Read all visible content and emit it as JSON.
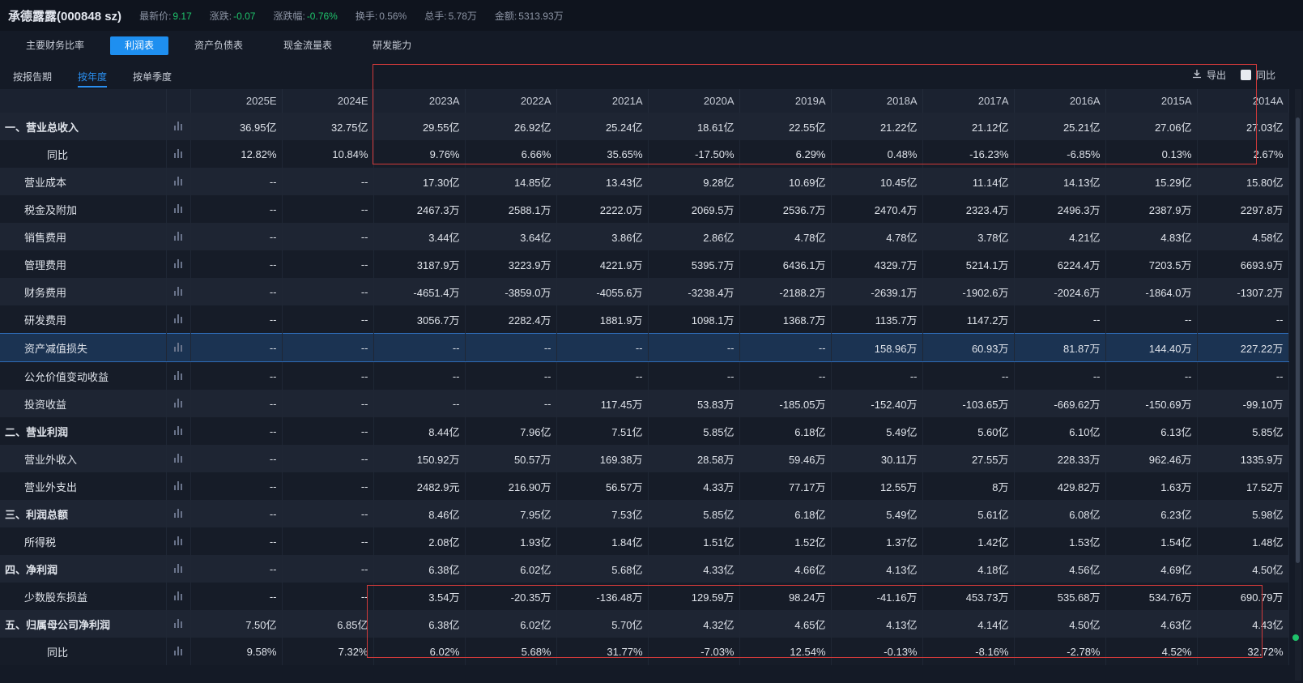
{
  "header": {
    "stock_name": "承德露露(000848 sz)",
    "latest_price_label": "最新价:",
    "latest_price": "9.17",
    "change_label": "涨跌:",
    "change": "-0.07",
    "change_pct_label": "涨跌幅:",
    "change_pct": "-0.76%",
    "turnover_label": "换手:",
    "turnover": "0.56%",
    "volume_label": "总手:",
    "volume": "5.78万",
    "amount_label": "金额:",
    "amount": "5313.93万"
  },
  "tabs": [
    "主要财务比率",
    "利润表",
    "资产负债表",
    "现金流量表",
    "研发能力"
  ],
  "active_tab": 1,
  "subtabs": [
    "按报告期",
    "按年度",
    "按单季度"
  ],
  "active_subtab": 1,
  "tools": {
    "export_label": "导出",
    "compare_label": "同比"
  },
  "table": {
    "columns": [
      "2025E",
      "2024E",
      "2023A",
      "2022A",
      "2021A",
      "2020A",
      "2019A",
      "2018A",
      "2017A",
      "2016A",
      "2015A",
      "2014A"
    ],
    "rows": [
      {
        "name": "一、营业总收入",
        "values": [
          "36.95亿",
          "32.75亿",
          "29.55亿",
          "26.92亿",
          "25.24亿",
          "18.61亿",
          "22.55亿",
          "21.22亿",
          "21.12亿",
          "25.21亿",
          "27.06亿",
          "27.03亿"
        ]
      },
      {
        "name": "同比",
        "values": [
          "12.82%",
          "10.84%",
          "9.76%",
          "6.66%",
          "35.65%",
          "-17.50%",
          "6.29%",
          "0.48%",
          "-16.23%",
          "-6.85%",
          "0.13%",
          "2.67%"
        ]
      },
      {
        "name": "营业成本",
        "values": [
          "--",
          "--",
          "17.30亿",
          "14.85亿",
          "13.43亿",
          "9.28亿",
          "10.69亿",
          "10.45亿",
          "11.14亿",
          "14.13亿",
          "15.29亿",
          "15.80亿"
        ]
      },
      {
        "name": "税金及附加",
        "values": [
          "--",
          "--",
          "2467.3万",
          "2588.1万",
          "2222.0万",
          "2069.5万",
          "2536.7万",
          "2470.4万",
          "2323.4万",
          "2496.3万",
          "2387.9万",
          "2297.8万"
        ]
      },
      {
        "name": "销售费用",
        "values": [
          "--",
          "--",
          "3.44亿",
          "3.64亿",
          "3.86亿",
          "2.86亿",
          "4.78亿",
          "4.78亿",
          "3.78亿",
          "4.21亿",
          "4.83亿",
          "4.58亿"
        ]
      },
      {
        "name": "管理费用",
        "values": [
          "--",
          "--",
          "3187.9万",
          "3223.9万",
          "4221.9万",
          "5395.7万",
          "6436.1万",
          "4329.7万",
          "5214.1万",
          "6224.4万",
          "7203.5万",
          "6693.9万"
        ]
      },
      {
        "name": "财务费用",
        "values": [
          "--",
          "--",
          "-4651.4万",
          "-3859.0万",
          "-4055.6万",
          "-3238.4万",
          "-2188.2万",
          "-2639.1万",
          "-1902.6万",
          "-2024.6万",
          "-1864.0万",
          "-1307.2万"
        ]
      },
      {
        "name": "研发费用",
        "values": [
          "--",
          "--",
          "3056.7万",
          "2282.4万",
          "1881.9万",
          "1098.1万",
          "1368.7万",
          "1135.7万",
          "1147.2万",
          "--",
          "--",
          "--"
        ]
      },
      {
        "name": "资产减值损失",
        "values": [
          "--",
          "--",
          "--",
          "--",
          "--",
          "--",
          "--",
          "158.96万",
          "60.93万",
          "81.87万",
          "144.40万",
          "227.22万"
        ]
      },
      {
        "name": "公允价值变动收益",
        "values": [
          "--",
          "--",
          "--",
          "--",
          "--",
          "--",
          "--",
          "--",
          "--",
          "--",
          "--",
          "--"
        ]
      },
      {
        "name": "投资收益",
        "values": [
          "--",
          "--",
          "--",
          "--",
          "117.45万",
          "53.83万",
          "-185.05万",
          "-152.40万",
          "-103.65万",
          "-669.62万",
          "-150.69万",
          "-99.10万"
        ]
      },
      {
        "name": "二、营业利润",
        "values": [
          "--",
          "--",
          "8.44亿",
          "7.96亿",
          "7.51亿",
          "5.85亿",
          "6.18亿",
          "5.49亿",
          "5.60亿",
          "6.10亿",
          "6.13亿",
          "5.85亿"
        ]
      },
      {
        "name": "营业外收入",
        "values": [
          "--",
          "--",
          "150.92万",
          "50.57万",
          "169.38万",
          "28.58万",
          "59.46万",
          "30.11万",
          "27.55万",
          "228.33万",
          "962.46万",
          "1335.9万"
        ]
      },
      {
        "name": "营业外支出",
        "values": [
          "--",
          "--",
          "2482.9元",
          "216.90万",
          "56.57万",
          "4.33万",
          "77.17万",
          "12.55万",
          "8万",
          "429.82万",
          "1.63万",
          "17.52万"
        ]
      },
      {
        "name": "三、利润总额",
        "values": [
          "--",
          "--",
          "8.46亿",
          "7.95亿",
          "7.53亿",
          "5.85亿",
          "6.18亿",
          "5.49亿",
          "5.61亿",
          "6.08亿",
          "6.23亿",
          "5.98亿"
        ]
      },
      {
        "name": "所得税",
        "values": [
          "--",
          "--",
          "2.08亿",
          "1.93亿",
          "1.84亿",
          "1.51亿",
          "1.52亿",
          "1.37亿",
          "1.42亿",
          "1.53亿",
          "1.54亿",
          "1.48亿"
        ]
      },
      {
        "name": "四、净利润",
        "values": [
          "--",
          "--",
          "6.38亿",
          "6.02亿",
          "5.68亿",
          "4.33亿",
          "4.66亿",
          "4.13亿",
          "4.18亿",
          "4.56亿",
          "4.69亿",
          "4.50亿"
        ]
      },
      {
        "name": "少数股东损益",
        "values": [
          "--",
          "--",
          "3.54万",
          "-20.35万",
          "-136.48万",
          "129.59万",
          "98.24万",
          "-41.16万",
          "453.73万",
          "535.68万",
          "534.76万",
          "690.79万"
        ]
      },
      {
        "name": "五、归属母公司净利润",
        "values": [
          "7.50亿",
          "6.85亿",
          "6.38亿",
          "6.02亿",
          "5.70亿",
          "4.32亿",
          "4.65亿",
          "4.13亿",
          "4.14亿",
          "4.50亿",
          "4.63亿",
          "4.43亿"
        ]
      },
      {
        "name": "同比",
        "values": [
          "9.58%",
          "7.32%",
          "6.02%",
          "5.68%",
          "31.77%",
          "-7.03%",
          "12.54%",
          "-0.13%",
          "-8.16%",
          "-2.78%",
          "4.52%",
          "32.72%"
        ]
      }
    ]
  },
  "colors": {
    "background": "#141a26",
    "accent": "#1e8ff0",
    "up": "#1fc26b",
    "highlight_box": "#d23a3a",
    "selected_row": "#1b3352"
  }
}
